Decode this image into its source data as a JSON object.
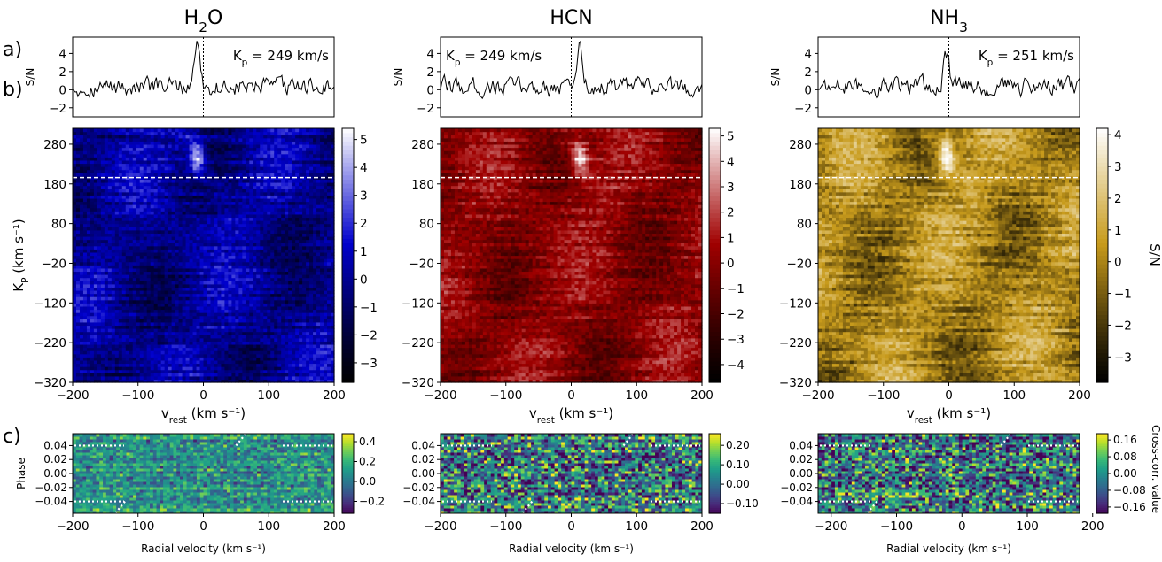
{
  "panel_labels": [
    "a)",
    "b)",
    "c)"
  ],
  "colorbar_label_b": "S/N",
  "colorbar_label_c": "Cross-corr. value",
  "chart_data": [
    {
      "type": "line",
      "panel": "a",
      "title": "H2O",
      "title_main": "H",
      "title_sub": "2",
      "title_tail": "O",
      "annotation": "K",
      "annotation_sub": "p",
      "annotation_tail": " = 249 km/s",
      "ylabel": "S/N",
      "xlim": [
        -200,
        200
      ],
      "ylim": [
        -3,
        5.8
      ],
      "yticks": [
        -2,
        0,
        2,
        4
      ],
      "yticklabels": [
        "−2",
        "0",
        "2",
        "4"
      ],
      "peak": {
        "x": -10,
        "y": 5.6
      },
      "vline_x": 0
    },
    {
      "type": "line",
      "panel": "a",
      "title": "HCN",
      "title_main": "HCN",
      "title_sub": "",
      "title_tail": "",
      "annotation": "K",
      "annotation_sub": "p",
      "annotation_tail": " = 249 km/s",
      "ylabel": "S/N",
      "xlim": [
        -200,
        200
      ],
      "ylim": [
        -3,
        5.8
      ],
      "yticks": [
        -2,
        0,
        2,
        4
      ],
      "yticklabels": [
        "−2",
        "0",
        "2",
        "4"
      ],
      "peak": {
        "x": 13,
        "y": 5.3
      },
      "vline_x": 0
    },
    {
      "type": "line",
      "panel": "a",
      "title": "NH3",
      "title_main": "NH",
      "title_sub": "3",
      "title_tail": "",
      "annotation": "K",
      "annotation_sub": "p",
      "annotation_tail": " = 251 km/s",
      "ylabel": "S/N",
      "xlim": [
        -200,
        200
      ],
      "ylim": [
        -3,
        5.8
      ],
      "yticks": [
        -2,
        0,
        2,
        4
      ],
      "yticklabels": [
        "−2",
        "0",
        "2",
        "4"
      ],
      "peak": {
        "x": -4,
        "y": 4.0
      },
      "vline_x": 0
    },
    {
      "type": "heatmap",
      "panel": "b",
      "molecule": "H2O",
      "xlabel": "v",
      "xlabel_sub": "rest",
      "xlabel_tail": " (km s⁻¹)",
      "ylabel": "K",
      "ylabel_sub": "P",
      "ylabel_tail": " (km s⁻¹)",
      "xlim": [
        -200,
        200
      ],
      "ylim": [
        -320,
        320
      ],
      "xticks": [
        -200,
        -100,
        0,
        100,
        200
      ],
      "xticklabels": [
        "−200",
        "−100",
        "0",
        "100",
        "200"
      ],
      "yticks": [
        -320,
        -220,
        -120,
        -20,
        80,
        180,
        280
      ],
      "yticklabels": [
        "−320",
        "−220",
        "−120",
        "−20",
        "80",
        "180",
        "280"
      ],
      "kp_line": 196,
      "peak": {
        "x": -10,
        "y": 249
      },
      "colorbar_ticks": [
        -3,
        -2,
        -1,
        0,
        1,
        2,
        3,
        4,
        5
      ],
      "colorbar_ticklabels": [
        "−3",
        "−2",
        "−1",
        "0",
        "1",
        "2",
        "3",
        "4",
        "5"
      ],
      "clim": [
        -3.7,
        5.4
      ],
      "colors": {
        "low": "#000000",
        "mid": "#0000cc",
        "high": "#ffffff"
      }
    },
    {
      "type": "heatmap",
      "panel": "b",
      "molecule": "HCN",
      "xlabel": "v",
      "xlabel_sub": "rest",
      "xlabel_tail": " (km s⁻¹)",
      "xlim": [
        -200,
        200
      ],
      "ylim": [
        -320,
        320
      ],
      "xticks": [
        -200,
        -100,
        0,
        100,
        200
      ],
      "xticklabels": [
        "−200",
        "−100",
        "0",
        "100",
        "200"
      ],
      "yticks": [
        -320,
        -220,
        -120,
        -20,
        80,
        180,
        280
      ],
      "yticklabels": [
        "−320",
        "−220",
        "−120",
        "−20",
        "80",
        "180",
        "280"
      ],
      "kp_line": 196,
      "peak": {
        "x": 13,
        "y": 249
      },
      "colorbar_ticks": [
        -4,
        -3,
        -2,
        -1,
        0,
        1,
        2,
        3,
        4,
        5
      ],
      "colorbar_ticklabels": [
        "−4",
        "−3",
        "−2",
        "−1",
        "0",
        "1",
        "2",
        "3",
        "4",
        "5"
      ],
      "clim": [
        -4.7,
        5.3
      ],
      "colors": {
        "low": "#000000",
        "mid": "#a00000",
        "high": "#ffffff"
      }
    },
    {
      "type": "heatmap",
      "panel": "b",
      "molecule": "NH3",
      "xlabel": "v",
      "xlabel_sub": "rest",
      "xlabel_tail": " (km s⁻¹)",
      "xlim": [
        -200,
        200
      ],
      "ylim": [
        -320,
        320
      ],
      "xticks": [
        -200,
        -100,
        0,
        100,
        200
      ],
      "xticklabels": [
        "−200",
        "−100",
        "0",
        "100",
        "200"
      ],
      "yticks": [
        -320,
        -220,
        -120,
        -20,
        80,
        180,
        280
      ],
      "yticklabels": [
        "−320",
        "−220",
        "−120",
        "−20",
        "80",
        "180",
        "280"
      ],
      "kp_line": 196,
      "peak": {
        "x": -4,
        "y": 251
      },
      "colorbar_ticks": [
        -3,
        -2,
        -1,
        0,
        1,
        2,
        3,
        4
      ],
      "colorbar_ticklabels": [
        "−3",
        "−2",
        "−1",
        "0",
        "1",
        "2",
        "3",
        "4"
      ],
      "clim": [
        -3.8,
        4.2
      ],
      "colors": {
        "low": "#000000",
        "mid": "#c89b1c",
        "high": "#ffffff"
      }
    },
    {
      "type": "heatmap",
      "panel": "c",
      "molecule": "H2O",
      "xlabel": "Radial velocity (km s⁻¹)",
      "ylabel": "Phase",
      "xlim": [
        -200,
        200
      ],
      "ylim": [
        -0.057,
        0.057
      ],
      "xticks": [
        -200,
        -100,
        0,
        100,
        200
      ],
      "xticklabels": [
        "−200",
        "−100",
        "0",
        "100",
        "200"
      ],
      "yticks": [
        -0.04,
        -0.02,
        0.0,
        0.02,
        0.04
      ],
      "yticklabels": [
        "−0.04",
        "−0.02",
        "0.00",
        "0.02",
        "0.04"
      ],
      "phase_lines": [
        0.04,
        -0.04
      ],
      "colorbar_ticks": [
        -0.2,
        0.0,
        0.2,
        0.4
      ],
      "colorbar_ticklabels": [
        "−0.2",
        "0.0",
        "0.2",
        "0.4"
      ],
      "clim": [
        -0.32,
        0.48
      ]
    },
    {
      "type": "heatmap",
      "panel": "c",
      "molecule": "HCN",
      "xlabel": "Radial velocity (km s⁻¹)",
      "xlim": [
        -200,
        200
      ],
      "ylim": [
        -0.057,
        0.057
      ],
      "xticks": [
        -200,
        -100,
        0,
        100,
        200
      ],
      "xticklabels": [
        "−200",
        "−100",
        "0",
        "100",
        "200"
      ],
      "yticks": [
        -0.04,
        -0.02,
        0.0,
        0.02,
        0.04
      ],
      "yticklabels": [
        "−0.04",
        "−0.02",
        "0.00",
        "0.02",
        "0.04"
      ],
      "phase_lines": [
        0.04,
        -0.04
      ],
      "colorbar_ticks": [
        -0.1,
        0.0,
        0.1,
        0.2
      ],
      "colorbar_ticklabels": [
        "−0.10",
        "0.00",
        "0.10",
        "0.20"
      ],
      "clim": [
        -0.15,
        0.26
      ]
    },
    {
      "type": "heatmap",
      "panel": "c",
      "molecule": "NH3",
      "xlabel": "Radial velocity (km s⁻¹)",
      "xlim": [
        -220,
        180
      ],
      "ylim": [
        -0.057,
        0.057
      ],
      "xticks": [
        -200,
        -100,
        0,
        100,
        200
      ],
      "xticklabels": [
        "−200",
        "−100",
        "0",
        "100",
        "200"
      ],
      "yticks": [
        -0.04,
        -0.02,
        0.0,
        0.02,
        0.04
      ],
      "yticklabels": [
        "−0.04",
        "−0.02",
        "0.00",
        "0.02",
        "0.04"
      ],
      "phase_lines": [
        0.04,
        -0.04
      ],
      "colorbar_ticks": [
        -0.16,
        -0.08,
        0.0,
        0.08,
        0.16
      ],
      "colorbar_ticklabels": [
        "−0.16",
        "−0.08",
        "0.00",
        "0.08",
        "0.16"
      ],
      "clim": [
        -0.19,
        0.19
      ]
    }
  ]
}
